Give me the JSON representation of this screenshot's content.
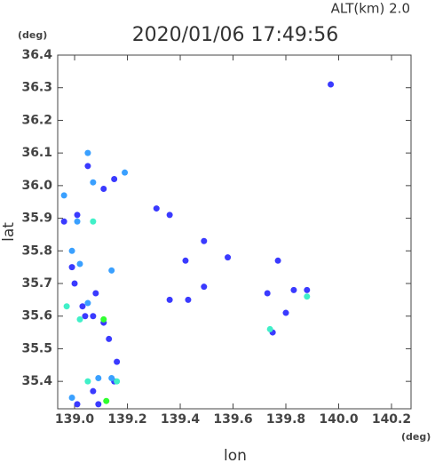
{
  "chart_data": {
    "type": "scatter",
    "title": "2020/01/06 17:49:56",
    "subtitle": "ALT(km) 2.0",
    "x_label": "lon",
    "y_label": "lat",
    "x_unit": "(deg)",
    "y_unit": "(deg)",
    "xlim": [
      138.936,
      140.274
    ],
    "ylim": [
      35.316,
      36.4
    ],
    "xticks": [
      {
        "value": 139,
        "label": "139.0"
      },
      139.2,
      139.4,
      139.6,
      139.8,
      {
        "value": 140,
        "label": "140.0"
      },
      140.2
    ],
    "yticks": [
      36.4,
      36.3,
      36.2,
      36.1,
      {
        "value": 36,
        "label": "36.0"
      },
      35.9,
      35.8,
      35.7,
      35.6,
      35.5,
      35.4
    ],
    "series": [
      {
        "color": "#3a3aff",
        "x": [
          139.97,
          139.05,
          139.11,
          139.36,
          139.31,
          139.08,
          138.99,
          139.0,
          139.03,
          139.04,
          139.11,
          139.07,
          139.13,
          139.16,
          139.15,
          139.01,
          139.58,
          139.42,
          139.49,
          139.43,
          139.36,
          139.49,
          139.77,
          139.83,
          139.88,
          139.73,
          139.8,
          139.75,
          139.15,
          139.01,
          138.96,
          139.07,
          139.09
        ],
        "y": [
          36.31,
          36.06,
          35.99,
          35.91,
          35.93,
          35.67,
          35.75,
          35.7,
          35.63,
          35.6,
          35.58,
          35.6,
          35.53,
          35.46,
          35.4,
          35.33,
          35.78,
          35.77,
          35.83,
          35.65,
          35.65,
          35.69,
          35.77,
          35.68,
          35.68,
          35.67,
          35.61,
          35.55,
          36.02,
          35.91,
          35.89,
          35.37,
          35.33
        ]
      },
      {
        "color": "#3aa0ff",
        "x": [
          139.05,
          138.96,
          139.07,
          138.99,
          139.02,
          138.99,
          139.14,
          139.09,
          139.05,
          139.14,
          139.19,
          139.01
        ],
        "y": [
          36.1,
          35.97,
          36.01,
          35.8,
          35.76,
          35.35,
          35.41,
          35.41,
          35.64,
          35.74,
          36.04,
          35.89
        ]
      },
      {
        "color": "#40f0c8",
        "x": [
          138.97,
          139.02,
          139.05,
          139.16,
          139.74,
          139.88,
          139.07
        ],
        "y": [
          35.63,
          35.59,
          35.4,
          35.4,
          35.56,
          35.66,
          35.89
        ]
      },
      {
        "color": "#30ff30",
        "x": [
          139.12,
          139.11
        ],
        "y": [
          35.34,
          35.59
        ]
      }
    ]
  }
}
